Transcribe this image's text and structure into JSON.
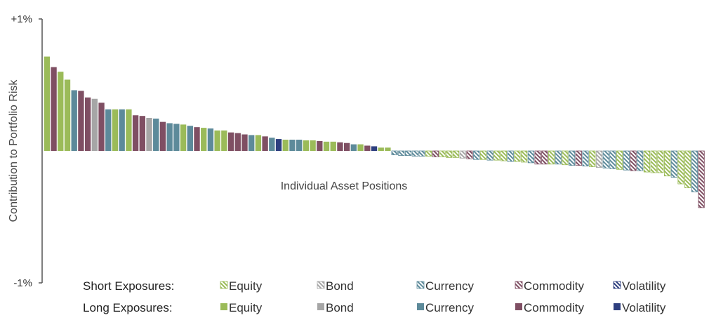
{
  "colors": {
    "Equity": "#9bbb59",
    "Bond": "#a6a6a6",
    "Currency": "#5d8a9a",
    "Commodity": "#7f4f63",
    "Volatility": "#2e3f7f"
  },
  "chart_data": {
    "type": "bar",
    "xlabel": "Individual Asset Positions",
    "ylabel": "Contribution to Portfolio Risk",
    "yticks": [
      "+1%",
      "-1%"
    ],
    "ylim": [
      -1,
      1
    ],
    "legend": {
      "rows": [
        {
          "label": "Short Exposures:",
          "style": "short"
        },
        {
          "label": "Long Exposures:",
          "style": "long"
        }
      ],
      "entries": [
        "Equity",
        "Bond",
        "Currency",
        "Commodity",
        "Volatility"
      ]
    },
    "bars": [
      {
        "v": 0.715,
        "a": "Equity",
        "s": "long"
      },
      {
        "v": 0.635,
        "a": "Commodity",
        "s": "long"
      },
      {
        "v": 0.6,
        "a": "Equity",
        "s": "long"
      },
      {
        "v": 0.54,
        "a": "Equity",
        "s": "long"
      },
      {
        "v": 0.46,
        "a": "Currency",
        "s": "long"
      },
      {
        "v": 0.455,
        "a": "Commodity",
        "s": "long"
      },
      {
        "v": 0.405,
        "a": "Commodity",
        "s": "long"
      },
      {
        "v": 0.395,
        "a": "Bond",
        "s": "long"
      },
      {
        "v": 0.365,
        "a": "Commodity",
        "s": "long"
      },
      {
        "v": 0.315,
        "a": "Currency",
        "s": "long"
      },
      {
        "v": 0.315,
        "a": "Equity",
        "s": "long"
      },
      {
        "v": 0.315,
        "a": "Currency",
        "s": "long"
      },
      {
        "v": 0.315,
        "a": "Equity",
        "s": "long"
      },
      {
        "v": 0.27,
        "a": "Commodity",
        "s": "long"
      },
      {
        "v": 0.265,
        "a": "Commodity",
        "s": "long"
      },
      {
        "v": 0.25,
        "a": "Bond",
        "s": "long"
      },
      {
        "v": 0.245,
        "a": "Currency",
        "s": "long"
      },
      {
        "v": 0.22,
        "a": "Commodity",
        "s": "long"
      },
      {
        "v": 0.21,
        "a": "Currency",
        "s": "long"
      },
      {
        "v": 0.205,
        "a": "Currency",
        "s": "long"
      },
      {
        "v": 0.2,
        "a": "Equity",
        "s": "long"
      },
      {
        "v": 0.19,
        "a": "Currency",
        "s": "long"
      },
      {
        "v": 0.18,
        "a": "Commodity",
        "s": "long"
      },
      {
        "v": 0.175,
        "a": "Equity",
        "s": "long"
      },
      {
        "v": 0.17,
        "a": "Currency",
        "s": "long"
      },
      {
        "v": 0.155,
        "a": "Equity",
        "s": "long"
      },
      {
        "v": 0.155,
        "a": "Equity",
        "s": "long"
      },
      {
        "v": 0.14,
        "a": "Commodity",
        "s": "long"
      },
      {
        "v": 0.135,
        "a": "Commodity",
        "s": "long"
      },
      {
        "v": 0.125,
        "a": "Commodity",
        "s": "long"
      },
      {
        "v": 0.12,
        "a": "Currency",
        "s": "long"
      },
      {
        "v": 0.12,
        "a": "Equity",
        "s": "long"
      },
      {
        "v": 0.11,
        "a": "Commodity",
        "s": "long"
      },
      {
        "v": 0.1,
        "a": "Currency",
        "s": "long"
      },
      {
        "v": 0.09,
        "a": "Volatility",
        "s": "long"
      },
      {
        "v": 0.085,
        "a": "Equity",
        "s": "long"
      },
      {
        "v": 0.085,
        "a": "Currency",
        "s": "long"
      },
      {
        "v": 0.085,
        "a": "Currency",
        "s": "long"
      },
      {
        "v": 0.08,
        "a": "Equity",
        "s": "long"
      },
      {
        "v": 0.08,
        "a": "Equity",
        "s": "long"
      },
      {
        "v": 0.075,
        "a": "Commodity",
        "s": "long"
      },
      {
        "v": 0.07,
        "a": "Equity",
        "s": "long"
      },
      {
        "v": 0.07,
        "a": "Equity",
        "s": "long"
      },
      {
        "v": 0.065,
        "a": "Commodity",
        "s": "long"
      },
      {
        "v": 0.06,
        "a": "Commodity",
        "s": "long"
      },
      {
        "v": 0.05,
        "a": "Currency",
        "s": "long"
      },
      {
        "v": 0.05,
        "a": "Equity",
        "s": "long"
      },
      {
        "v": 0.04,
        "a": "Commodity",
        "s": "long"
      },
      {
        "v": 0.035,
        "a": "Volatility",
        "s": "long"
      },
      {
        "v": 0.025,
        "a": "Equity",
        "s": "long"
      },
      {
        "v": 0.025,
        "a": "Equity",
        "s": "long"
      },
      {
        "v": -0.03,
        "a": "Currency",
        "s": "short"
      },
      {
        "v": -0.035,
        "a": "Currency",
        "s": "short"
      },
      {
        "v": -0.035,
        "a": "Currency",
        "s": "short"
      },
      {
        "v": -0.04,
        "a": "Currency",
        "s": "short"
      },
      {
        "v": -0.04,
        "a": "Currency",
        "s": "short"
      },
      {
        "v": -0.04,
        "a": "Equity",
        "s": "short"
      },
      {
        "v": -0.045,
        "a": "Commodity",
        "s": "short"
      },
      {
        "v": -0.045,
        "a": "Equity",
        "s": "short"
      },
      {
        "v": -0.05,
        "a": "Equity",
        "s": "short"
      },
      {
        "v": -0.05,
        "a": "Equity",
        "s": "short"
      },
      {
        "v": -0.055,
        "a": "Bond",
        "s": "short"
      },
      {
        "v": -0.06,
        "a": "Commodity",
        "s": "short"
      },
      {
        "v": -0.065,
        "a": "Currency",
        "s": "short"
      },
      {
        "v": -0.065,
        "a": "Equity",
        "s": "short"
      },
      {
        "v": -0.07,
        "a": "Currency",
        "s": "short"
      },
      {
        "v": -0.07,
        "a": "Equity",
        "s": "short"
      },
      {
        "v": -0.075,
        "a": "Equity",
        "s": "short"
      },
      {
        "v": -0.08,
        "a": "Currency",
        "s": "short"
      },
      {
        "v": -0.08,
        "a": "Equity",
        "s": "short"
      },
      {
        "v": -0.085,
        "a": "Equity",
        "s": "short"
      },
      {
        "v": -0.09,
        "a": "Currency",
        "s": "short"
      },
      {
        "v": -0.1,
        "a": "Commodity",
        "s": "short"
      },
      {
        "v": -0.1,
        "a": "Commodity",
        "s": "short"
      },
      {
        "v": -0.1,
        "a": "Equity",
        "s": "short"
      },
      {
        "v": -0.1,
        "a": "Currency",
        "s": "short"
      },
      {
        "v": -0.105,
        "a": "Equity",
        "s": "short"
      },
      {
        "v": -0.11,
        "a": "Currency",
        "s": "short"
      },
      {
        "v": -0.11,
        "a": "Commodity",
        "s": "short"
      },
      {
        "v": -0.115,
        "a": "Currency",
        "s": "short"
      },
      {
        "v": -0.12,
        "a": "Equity",
        "s": "short"
      },
      {
        "v": -0.125,
        "a": "Bond",
        "s": "short"
      },
      {
        "v": -0.13,
        "a": "Currency",
        "s": "short"
      },
      {
        "v": -0.135,
        "a": "Currency",
        "s": "short"
      },
      {
        "v": -0.14,
        "a": "Equity",
        "s": "short"
      },
      {
        "v": -0.145,
        "a": "Currency",
        "s": "short"
      },
      {
        "v": -0.15,
        "a": "Commodity",
        "s": "short"
      },
      {
        "v": -0.15,
        "a": "Currency",
        "s": "short"
      },
      {
        "v": -0.16,
        "a": "Equity",
        "s": "short"
      },
      {
        "v": -0.165,
        "a": "Equity",
        "s": "short"
      },
      {
        "v": -0.165,
        "a": "Equity",
        "s": "short"
      },
      {
        "v": -0.19,
        "a": "Equity",
        "s": "short"
      },
      {
        "v": -0.2,
        "a": "Currency",
        "s": "short"
      },
      {
        "v": -0.25,
        "a": "Equity",
        "s": "short"
      },
      {
        "v": -0.28,
        "a": "Equity",
        "s": "short"
      },
      {
        "v": -0.31,
        "a": "Currency",
        "s": "short"
      },
      {
        "v": -0.43,
        "a": "Commodity",
        "s": "short"
      }
    ]
  }
}
